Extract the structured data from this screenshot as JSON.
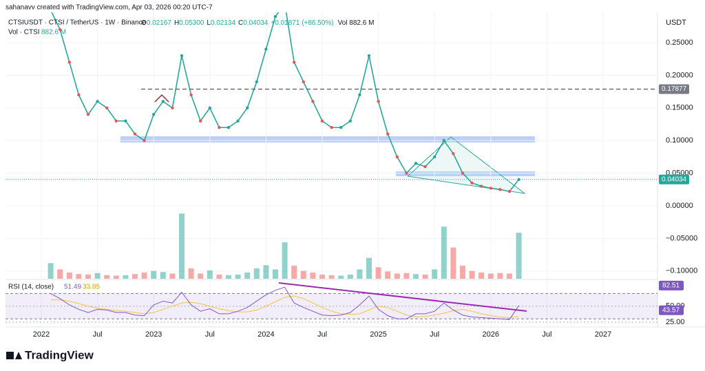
{
  "chart_data": {
    "type": "line",
    "credit": "sahanavv created with TradingView.com, Apr 03, 2026 00:20 UTC-7",
    "symbol": "CTSIUSDT · CTSI / TetherUS · 1W · Binance",
    "ohlc": [
      {
        "label": "O",
        "value": "0.02167"
      },
      {
        "label": "H",
        "value": "0.05300"
      },
      {
        "label": "L",
        "value": "0.02134"
      },
      {
        "label": "C",
        "value": "0.04034"
      }
    ],
    "change": "+0.01871 (+86.50%)",
    "vol_header": "Vol 882.6 M",
    "vol_pane": "Vol · CTSI",
    "vol_value": "882.6 M",
    "currency": "USDT",
    "x": [
      "2022-02",
      "2022-03",
      "2022-04",
      "2022-05",
      "2022-06",
      "2022-07",
      "2022-08",
      "2022-09",
      "2022-10",
      "2022-11",
      "2022-12",
      "2023-01",
      "2023-02",
      "2023-03",
      "2023-04",
      "2023-05",
      "2023-06",
      "2023-07",
      "2023-08",
      "2023-09",
      "2023-10",
      "2023-11",
      "2023-12",
      "2024-01",
      "2024-02",
      "2024-03",
      "2024-04",
      "2024-05",
      "2024-06",
      "2024-07",
      "2024-08",
      "2024-09",
      "2024-10",
      "2024-11",
      "2024-12",
      "2025-01",
      "2025-02",
      "2025-03",
      "2025-04",
      "2025-05",
      "2025-06",
      "2025-07",
      "2025-08",
      "2025-09",
      "2025-10",
      "2025-11",
      "2025-12",
      "2026-01",
      "2026-02",
      "2026-03",
      "2026-04"
    ],
    "series": [
      {
        "name": "CTSIUSDT",
        "color": "#26a69a",
        "values": [
          0.3,
          0.27,
          0.22,
          0.17,
          0.14,
          0.16,
          0.15,
          0.13,
          0.13,
          0.11,
          0.1,
          0.14,
          0.16,
          0.15,
          0.23,
          0.17,
          0.13,
          0.15,
          0.12,
          0.12,
          0.13,
          0.15,
          0.19,
          0.24,
          0.29,
          0.31,
          0.22,
          0.19,
          0.16,
          0.13,
          0.12,
          0.12,
          0.13,
          0.17,
          0.23,
          0.16,
          0.11,
          0.075,
          0.05,
          0.065,
          0.06,
          0.075,
          0.1,
          0.08,
          0.05,
          0.035,
          0.03,
          0.027,
          0.025,
          0.022,
          0.04034
        ]
      },
      {
        "name": "Vol",
        "color": "#26a69a",
        "values": [
          300,
          180,
          120,
          90,
          80,
          110,
          70,
          60,
          70,
          90,
          120,
          150,
          130,
          100,
          1250,
          200,
          100,
          160,
          80,
          70,
          80,
          120,
          200,
          260,
          180,
          700,
          250,
          150,
          120,
          80,
          70,
          60,
          80,
          180,
          400,
          220,
          140,
          100,
          110,
          90,
          80,
          180,
          1000,
          600,
          250,
          150,
          120,
          100,
          110,
          100,
          882.6
        ]
      },
      {
        "name": "RSI",
        "color": "#7e57c2",
        "values": [
          70,
          62,
          52,
          45,
          40,
          45,
          44,
          40,
          40,
          36,
          35,
          52,
          58,
          55,
          72,
          52,
          42,
          46,
          38,
          38,
          42,
          48,
          58,
          68,
          75,
          80,
          55,
          48,
          42,
          36,
          35,
          36,
          40,
          52,
          66,
          45,
          35,
          30,
          30,
          38,
          38,
          42,
          55,
          44,
          36,
          33,
          32,
          31,
          30,
          29,
          51
        ]
      },
      {
        "name": "RSI MA",
        "color": "#f5c242",
        "values": [
          60,
          60,
          58,
          54,
          50,
          47,
          45,
          43,
          42,
          40,
          38,
          40,
          45,
          50,
          55,
          56,
          54,
          50,
          46,
          43,
          41,
          41,
          44,
          50,
          57,
          64,
          66,
          62,
          55,
          48,
          42,
          38,
          37,
          38,
          44,
          50,
          48,
          42,
          36,
          33,
          34,
          36,
          39,
          43,
          45,
          42,
          38,
          35,
          33,
          32,
          34
        ]
      }
    ],
    "ylim": [
      -0.1118,
      0.2964
    ],
    "yticks": [
      {
        "value": 0.25,
        "label": "0.25000"
      },
      {
        "value": 0.2,
        "label": "0.20000"
      },
      {
        "value": 0.15,
        "label": "0.15000"
      },
      {
        "value": 0.1,
        "label": "0.10000"
      },
      {
        "value": 0.05,
        "label": "0.05000"
      },
      {
        "value": 0,
        "label": "0.00000"
      },
      {
        "value": -0.05,
        "label": "−0.05000"
      },
      {
        "value": -0.1,
        "label": "−0.10000"
      }
    ],
    "vlim": [
      0,
      1320
    ],
    "level": {
      "value": 0.17877,
      "label": "0.17877"
    },
    "last_price": {
      "value": 0.04034,
      "label": "0.04034"
    },
    "rsi_title": "RSI (14, close)",
    "rsi_value": "51.49",
    "rsi_ma_value": "33.85",
    "rsi_lim": [
      20.5,
      90
    ],
    "rsi_ticks": [
      {
        "value": 50,
        "label": "50.00"
      },
      {
        "value": 25,
        "label": "25.00"
      }
    ],
    "rsi_boxes": [
      {
        "value": 82.51,
        "label": "82.51"
      },
      {
        "value": 43.57,
        "label": "43.57"
      }
    ],
    "rsi_bands": [
      70,
      30
    ],
    "xticks": [
      {
        "value": "2022-01",
        "label": "2022"
      },
      {
        "value": "2022-07",
        "label": "Jul"
      },
      {
        "value": "2023-01",
        "label": "2023"
      },
      {
        "value": "2023-07",
        "label": "Jul"
      },
      {
        "value": "2024-01",
        "label": "2024"
      },
      {
        "value": "2024-07",
        "label": "Jul"
      },
      {
        "value": "2025-01",
        "label": "2025"
      },
      {
        "value": "2025-07",
        "label": "Jul"
      },
      {
        "value": "2026-01",
        "label": "2026"
      },
      {
        "value": "2026-07",
        "label": "Jul"
      },
      {
        "value": "2027-01",
        "label": "2027"
      }
    ],
    "brand": "TradingView"
  }
}
